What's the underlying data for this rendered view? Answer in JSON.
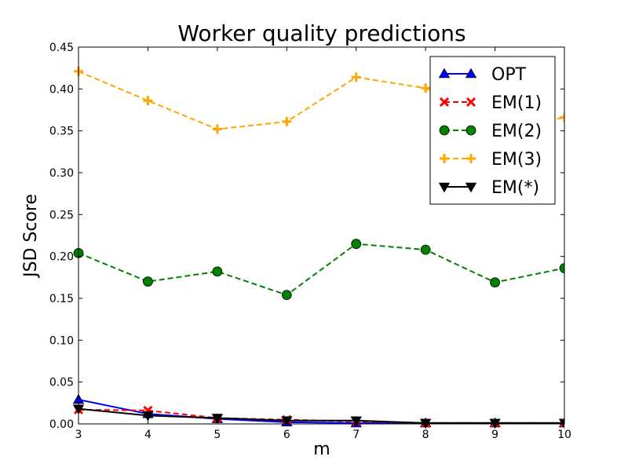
{
  "chart_data": {
    "type": "line",
    "title": "Worker quality predictions",
    "xlabel": "m",
    "ylabel": "JSD Score",
    "x": [
      3,
      4,
      5,
      6,
      7,
      8,
      9,
      10
    ],
    "xlim": [
      3,
      10
    ],
    "ylim": [
      0,
      0.45
    ],
    "xticks": [
      3,
      4,
      5,
      6,
      7,
      8,
      9,
      10
    ],
    "yticks": [
      0.0,
      0.05,
      0.1,
      0.15,
      0.2,
      0.25,
      0.3,
      0.35,
      0.4,
      0.45
    ],
    "ytick_labels": [
      "0.00",
      "0.05",
      "0.10",
      "0.15",
      "0.20",
      "0.25",
      "0.30",
      "0.35",
      "0.40",
      "0.45"
    ],
    "grid": false,
    "legend_position": "top-right",
    "series": [
      {
        "name": "OPT",
        "color": "#0000ff",
        "marker": "triangle-up",
        "dash": "solid",
        "values": [
          0.029,
          0.012,
          0.006,
          0.002,
          0.001,
          0.001,
          0.001,
          0.001
        ]
      },
      {
        "name": "EM(1)",
        "color": "#ff0000",
        "marker": "x",
        "dash": "dashed",
        "values": [
          0.017,
          0.016,
          0.007,
          0.005,
          0.003,
          0.001,
          0.001,
          0.001
        ]
      },
      {
        "name": "EM(2)",
        "color": "#008000",
        "marker": "circle",
        "dash": "dashed",
        "values": [
          0.204,
          0.17,
          0.182,
          0.154,
          0.215,
          0.208,
          0.169,
          0.186
        ]
      },
      {
        "name": "EM(3)",
        "color": "#ffa500",
        "marker": "plus",
        "dash": "dashed",
        "values": [
          0.421,
          0.386,
          0.352,
          0.361,
          0.414,
          0.401,
          0.349,
          0.366
        ]
      },
      {
        "name": "EM(*)",
        "color": "#000000",
        "marker": "triangle-down",
        "dash": "solid",
        "values": [
          0.018,
          0.01,
          0.007,
          0.004,
          0.004,
          0.001,
          0.001,
          0.001
        ]
      }
    ]
  }
}
